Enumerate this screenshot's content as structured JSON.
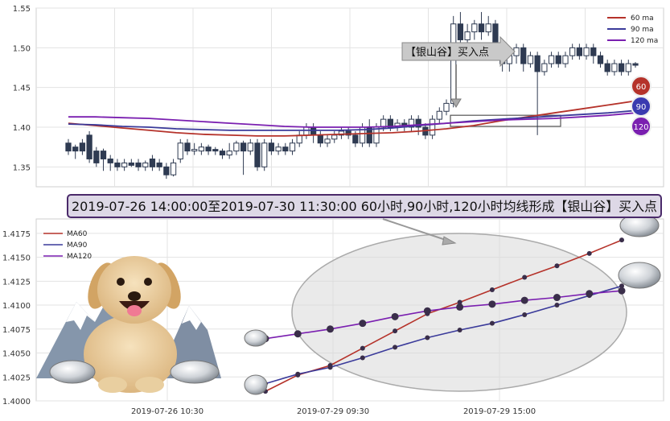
{
  "colors": {
    "ma60": "#b5322a",
    "ma90": "#3a3a9a",
    "ma120": "#7a1fb0",
    "candle": "#2f3b52"
  },
  "signal_label": "【银山谷】买入点",
  "banner": "2019-07-26 14:00:00至2019-07-30 11:30:00 60小时,90小时,120小时均线形成【银山谷】买入点",
  "badges": [
    "60",
    "90",
    "120"
  ],
  "chart_data": [
    {
      "type": "candlestick",
      "ylim": [
        1.325,
        1.55
      ],
      "yticks": [
        "1.55",
        "1.50",
        "1.45",
        "1.40",
        "1.35"
      ],
      "legend": [
        "60 ma",
        "90 ma",
        "120 ma"
      ],
      "candles": [
        [
          1.38,
          1.37,
          1.385,
          1.365
        ],
        [
          1.375,
          1.37,
          1.378,
          1.36
        ],
        [
          1.38,
          1.37,
          1.385,
          1.365
        ],
        [
          1.39,
          1.36,
          1.395,
          1.355
        ],
        [
          1.37,
          1.355,
          1.375,
          1.35
        ],
        [
          1.37,
          1.36,
          1.373,
          1.345
        ],
        [
          1.36,
          1.355,
          1.365,
          1.345
        ],
        [
          1.355,
          1.35,
          1.36,
          1.345
        ],
        [
          1.35,
          1.355,
          1.36,
          1.345
        ],
        [
          1.355,
          1.352,
          1.36,
          1.35
        ],
        [
          1.355,
          1.35,
          1.36,
          1.345
        ],
        [
          1.35,
          1.355,
          1.358,
          1.345
        ],
        [
          1.36,
          1.35,
          1.365,
          1.345
        ],
        [
          1.355,
          1.35,
          1.36,
          1.345
        ],
        [
          1.35,
          1.34,
          1.355,
          1.335
        ],
        [
          1.34,
          1.355,
          1.36,
          1.338
        ],
        [
          1.36,
          1.38,
          1.385,
          1.355
        ],
        [
          1.38,
          1.37,
          1.385,
          1.365
        ],
        [
          1.37,
          1.372,
          1.38,
          1.365
        ],
        [
          1.37,
          1.375,
          1.38,
          1.365
        ],
        [
          1.375,
          1.37,
          1.378,
          1.365
        ],
        [
          1.372,
          1.37,
          1.375,
          1.365
        ],
        [
          1.37,
          1.365,
          1.373,
          1.36
        ],
        [
          1.365,
          1.37,
          1.38,
          1.36
        ],
        [
          1.37,
          1.38,
          1.383,
          1.365
        ],
        [
          1.38,
          1.37,
          1.383,
          1.34
        ],
        [
          1.37,
          1.38,
          1.385,
          1.365
        ],
        [
          1.38,
          1.35,
          1.385,
          1.345
        ],
        [
          1.35,
          1.38,
          1.385,
          1.345
        ],
        [
          1.38,
          1.37,
          1.385,
          1.365
        ],
        [
          1.37,
          1.375,
          1.38,
          1.365
        ],
        [
          1.375,
          1.37,
          1.38,
          1.365
        ],
        [
          1.37,
          1.38,
          1.385,
          1.365
        ],
        [
          1.38,
          1.39,
          1.395,
          1.375
        ],
        [
          1.39,
          1.4,
          1.405,
          1.385
        ],
        [
          1.4,
          1.39,
          1.405,
          1.38
        ],
        [
          1.39,
          1.38,
          1.395,
          1.375
        ],
        [
          1.38,
          1.385,
          1.39,
          1.375
        ],
        [
          1.385,
          1.39,
          1.395,
          1.38
        ],
        [
          1.39,
          1.395,
          1.4,
          1.385
        ],
        [
          1.395,
          1.39,
          1.4,
          1.385
        ],
        [
          1.39,
          1.38,
          1.395,
          1.375
        ],
        [
          1.38,
          1.4,
          1.405,
          1.375
        ],
        [
          1.4,
          1.38,
          1.41,
          1.375
        ],
        [
          1.38,
          1.4,
          1.405,
          1.375
        ],
        [
          1.4,
          1.41,
          1.415,
          1.395
        ],
        [
          1.41,
          1.4,
          1.415,
          1.395
        ],
        [
          1.4,
          1.405,
          1.41,
          1.395
        ],
        [
          1.405,
          1.4,
          1.41,
          1.395
        ],
        [
          1.4,
          1.41,
          1.415,
          1.395
        ],
        [
          1.41,
          1.4,
          1.415,
          1.39
        ],
        [
          1.4,
          1.39,
          1.405,
          1.385
        ],
        [
          1.39,
          1.41,
          1.415,
          1.385
        ],
        [
          1.41,
          1.42,
          1.425,
          1.405
        ],
        [
          1.42,
          1.43,
          1.435,
          1.415
        ],
        [
          1.43,
          1.53,
          1.54,
          1.425
        ],
        [
          1.53,
          1.51,
          1.545,
          1.5
        ],
        [
          1.51,
          1.52,
          1.53,
          1.505
        ],
        [
          1.52,
          1.53,
          1.535,
          1.51
        ],
        [
          1.53,
          1.52,
          1.545,
          1.51
        ],
        [
          1.52,
          1.53,
          1.54,
          1.515
        ],
        [
          1.53,
          1.5,
          1.535,
          1.49
        ],
        [
          1.49,
          1.48,
          1.495,
          1.47
        ],
        [
          1.48,
          1.49,
          1.5,
          1.47
        ],
        [
          1.49,
          1.5,
          1.505,
          1.48
        ],
        [
          1.5,
          1.48,
          1.505,
          1.47
        ],
        [
          1.48,
          1.49,
          1.495,
          1.475
        ],
        [
          1.49,
          1.47,
          1.495,
          1.39
        ],
        [
          1.47,
          1.48,
          1.485,
          1.465
        ],
        [
          1.48,
          1.49,
          1.495,
          1.475
        ],
        [
          1.49,
          1.48,
          1.495,
          1.475
        ],
        [
          1.48,
          1.49,
          1.495,
          1.475
        ],
        [
          1.49,
          1.5,
          1.505,
          1.485
        ],
        [
          1.5,
          1.49,
          1.505,
          1.485
        ],
        [
          1.49,
          1.5,
          1.505,
          1.485
        ],
        [
          1.5,
          1.49,
          1.505,
          1.48
        ],
        [
          1.49,
          1.48,
          1.495,
          1.475
        ],
        [
          1.48,
          1.47,
          1.485,
          1.465
        ],
        [
          1.47,
          1.48,
          1.485,
          1.465
        ],
        [
          1.48,
          1.47,
          1.485,
          1.465
        ],
        [
          1.47,
          1.48,
          1.485,
          1.465
        ],
        [
          1.48,
          1.478,
          1.482,
          1.475
        ]
      ],
      "ma60": [
        1.405,
        1.402,
        1.399,
        1.396,
        1.393,
        1.391,
        1.39,
        1.389,
        1.389,
        1.39,
        1.391,
        1.392,
        1.393,
        1.395,
        1.398,
        1.402,
        1.408,
        1.413,
        1.418,
        1.423,
        1.428,
        1.433
      ],
      "ma90": [
        1.404,
        1.403,
        1.401,
        1.4,
        1.398,
        1.397,
        1.396,
        1.396,
        1.396,
        1.396,
        1.396,
        1.397,
        1.399,
        1.402,
        1.405,
        1.408,
        1.41,
        1.412,
        1.414,
        1.416,
        1.418,
        1.421
      ],
      "ma120": [
        1.413,
        1.413,
        1.412,
        1.411,
        1.409,
        1.407,
        1.405,
        1.403,
        1.401,
        1.4,
        1.4,
        1.4,
        1.401,
        1.403,
        1.405,
        1.407,
        1.409,
        1.41,
        1.411,
        1.413,
        1.415,
        1.418
      ],
      "zone": {
        "from": 1.401,
        "to": 1.415
      }
    },
    {
      "type": "line",
      "ylim": [
        1.4,
        1.419
      ],
      "yticks": [
        "1.4175",
        "1.4150",
        "1.4125",
        "1.4100",
        "1.4075",
        "1.4050",
        "1.4025",
        "1.4000"
      ],
      "xticks": [
        "2019-07-26 10:30",
        "2019-07-29 09:30",
        "2019-07-29 15:00"
      ],
      "legend": [
        "MA60",
        "MA90",
        "MA120"
      ],
      "series": [
        {
          "name": "MA60",
          "values": [
            1.401,
            1.4027,
            1.4037,
            1.4055,
            1.4073,
            1.4091,
            1.4103,
            1.4116,
            1.4129,
            1.4141,
            1.4154,
            1.4168
          ]
        },
        {
          "name": "MA90",
          "values": [
            1.4018,
            1.4028,
            1.4035,
            1.4045,
            1.4056,
            1.4066,
            1.4074,
            1.4081,
            1.409,
            1.41,
            1.411,
            1.412
          ]
        },
        {
          "name": "MA120",
          "values": [
            1.4065,
            1.407,
            1.4075,
            1.4081,
            1.4088,
            1.4094,
            1.4098,
            1.4101,
            1.4105,
            1.4108,
            1.4112,
            1.4115
          ]
        }
      ]
    }
  ]
}
